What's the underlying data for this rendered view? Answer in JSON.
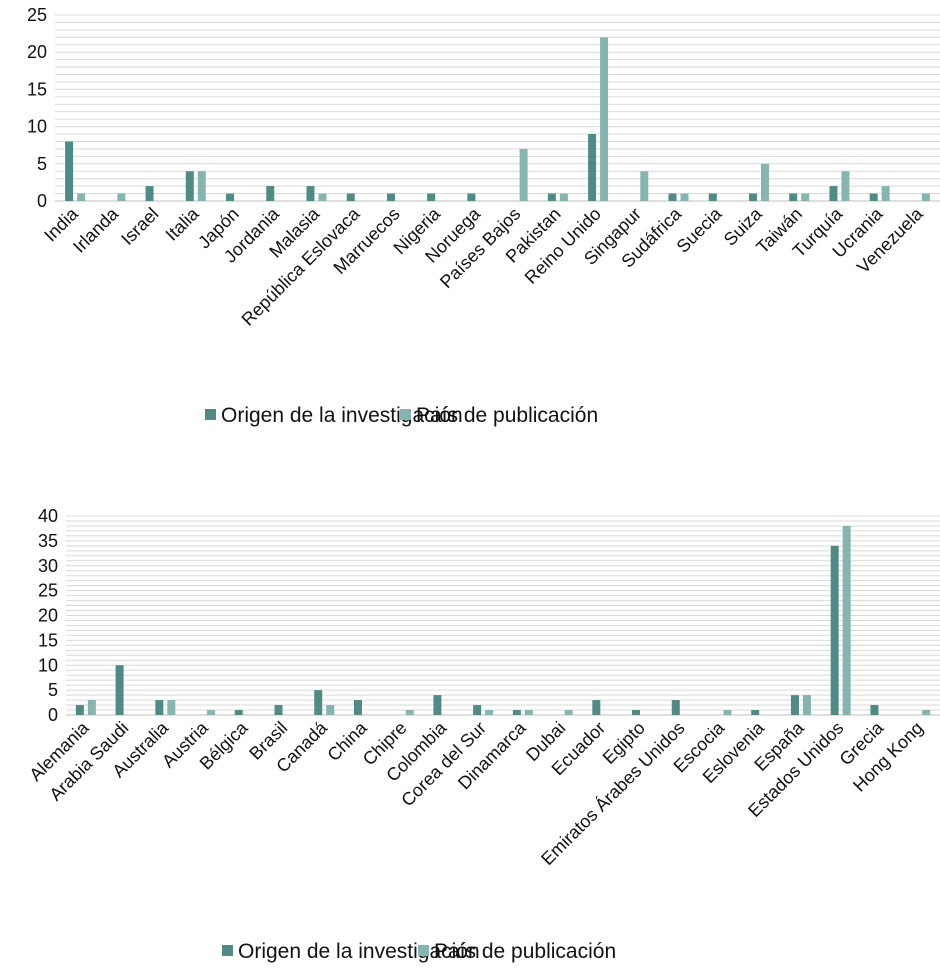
{
  "series_colors": [
    "#4f8a87",
    "#86b5b1"
  ],
  "chart_data": [
    {
      "type": "bar",
      "title": "",
      "xlabel": "",
      "ylabel": "",
      "ylim": [
        0,
        25
      ],
      "yticks": [
        0,
        5,
        10,
        15,
        20,
        25
      ],
      "grid": true,
      "legend_position": "bottom",
      "categories": [
        "India",
        "Irlanda",
        "Israel",
        "Italia",
        "Japón",
        "Jordania",
        "Malasia",
        "República Eslovaca",
        "Marruecos",
        "Nigeria",
        "Noruega",
        "Países Bajos",
        "Pakistan",
        "Reino Unido",
        "Singapur",
        "Sudáfrica",
        "Suecia",
        "Suiza",
        "Taiwán",
        "Turquía",
        "Ucrania",
        "Venezuela"
      ],
      "series": [
        {
          "name": "Origen de la investigación",
          "values": [
            8,
            0,
            2,
            4,
            1,
            2,
            2,
            1,
            1,
            1,
            1,
            0,
            1,
            9,
            0,
            1,
            1,
            1,
            1,
            2,
            1,
            0
          ]
        },
        {
          "name": "País de publicación",
          "values": [
            1,
            1,
            0,
            4,
            0,
            0,
            1,
            0,
            0,
            0,
            0,
            7,
            1,
            22,
            4,
            1,
            0,
            5,
            1,
            4,
            2,
            1
          ]
        }
      ]
    },
    {
      "type": "bar",
      "title": "",
      "xlabel": "",
      "ylabel": "",
      "ylim": [
        0,
        40
      ],
      "yticks": [
        0,
        5,
        10,
        15,
        20,
        25,
        30,
        35,
        40
      ],
      "grid": true,
      "legend_position": "bottom",
      "categories": [
        "Alemania",
        "Arabia Saudi",
        "Australia",
        "Austria",
        "Bélgica",
        "Brasil",
        "Canadá",
        "China",
        "Chipre",
        "Colombia",
        "Corea del Sur",
        "Dinamarca",
        "Dubai",
        "Ecuador",
        "Egipto",
        "Emiratos Árabes Unidos",
        "Escocia",
        "Eslovenia",
        "España",
        "Estados Unidos",
        "Grecia",
        "Hong Kong"
      ],
      "series": [
        {
          "name": "Origen de la investigación",
          "values": [
            2,
            10,
            3,
            0,
            1,
            2,
            5,
            3,
            0,
            4,
            2,
            1,
            0,
            3,
            1,
            3,
            0,
            1,
            4,
            34,
            2,
            0
          ]
        },
        {
          "name": "País de publicación",
          "values": [
            3,
            0,
            3,
            1,
            0,
            0,
            2,
            0,
            1,
            0,
            1,
            1,
            1,
            0,
            0,
            0,
            1,
            0,
            4,
            38,
            0,
            1
          ]
        }
      ]
    }
  ]
}
